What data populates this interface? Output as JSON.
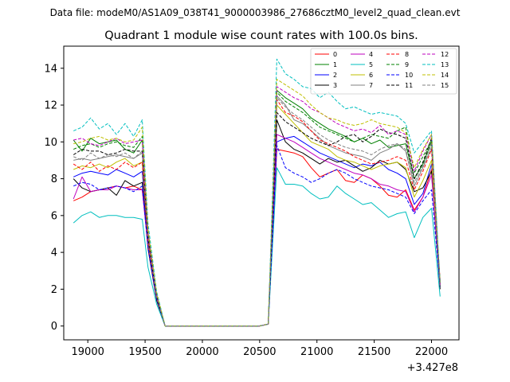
{
  "chart_data": {
    "type": "line",
    "suptitle": "Data file: modeM0/AS1A09_038T41_9000003986_27686cztM0_level2_quad_clean.evt",
    "title": "Quadrant 1 module wise count rates with 100.0s bins.",
    "xlabel": "",
    "ylabel": "",
    "x_offset_label": "+3.427e8",
    "xlim": [
      18790,
      22240
    ],
    "ylim": [
      -0.75,
      15.2
    ],
    "xticks": [
      19000,
      19500,
      20000,
      20500,
      21000,
      21500,
      22000
    ],
    "yticks": [
      0,
      2,
      4,
      6,
      8,
      10,
      12,
      14
    ],
    "grid": false,
    "legend_position": "upper-right",
    "x": [
      18875,
      18950,
      19025,
      19100,
      19175,
      19250,
      19325,
      19400,
      19475,
      19525,
      19600,
      19675,
      19750,
      19825,
      19900,
      19975,
      20050,
      20125,
      20200,
      20275,
      20350,
      20425,
      20500,
      20575,
      20650,
      20725,
      20800,
      20875,
      20950,
      21025,
      21100,
      21175,
      21250,
      21325,
      21400,
      21475,
      21550,
      21625,
      21700,
      21775,
      21850,
      21925,
      22000,
      22075
    ],
    "series": [
      {
        "name": "0",
        "color": "#ff0000",
        "dash": "solid",
        "values": [
          6.8,
          7.0,
          7.3,
          7.4,
          7.5,
          7.6,
          7.5,
          7.6,
          7.4,
          4.5,
          1.5,
          0,
          0,
          0,
          0,
          0,
          0,
          0,
          0,
          0,
          0,
          0,
          0,
          0.1,
          9.6,
          9.5,
          9.4,
          9.2,
          8.6,
          8.1,
          8.3,
          8.5,
          7.9,
          7.8,
          8.2,
          8.0,
          7.6,
          7.1,
          7.0,
          7.4,
          6.3,
          7.0,
          8.5,
          2.5
        ]
      },
      {
        "name": "1",
        "color": "#008000",
        "dash": "solid",
        "values": [
          10.1,
          9.5,
          10.2,
          9.9,
          10.0,
          10.1,
          9.6,
          9.4,
          10.1,
          5.0,
          1.7,
          0,
          0,
          0,
          0,
          0,
          0,
          0,
          0,
          0,
          0,
          0,
          0,
          0.1,
          12.8,
          12.4,
          12.1,
          11.8,
          11.3,
          11.0,
          10.7,
          10.5,
          10.3,
          10.0,
          10.2,
          9.9,
          10.1,
          9.7,
          9.8,
          9.9,
          8.0,
          8.8,
          10.0,
          2.2
        ]
      },
      {
        "name": "2",
        "color": "#0000ff",
        "dash": "solid",
        "values": [
          8.1,
          8.3,
          8.4,
          8.3,
          8.2,
          8.5,
          8.3,
          8.1,
          8.4,
          4.5,
          1.6,
          0,
          0,
          0,
          0,
          0,
          0,
          0,
          0,
          0,
          0,
          0,
          0,
          0.1,
          10.0,
          10.2,
          10.3,
          10.0,
          9.7,
          9.4,
          9.2,
          9.0,
          8.8,
          8.6,
          8.8,
          8.7,
          8.9,
          8.5,
          8.3,
          8.0,
          6.6,
          7.2,
          8.8,
          2.3
        ]
      },
      {
        "name": "3",
        "color": "#000000",
        "dash": "solid",
        "values": [
          8.0,
          7.5,
          7.3,
          7.4,
          7.5,
          7.1,
          7.9,
          7.6,
          7.8,
          4.2,
          1.4,
          0,
          0,
          0,
          0,
          0,
          0,
          0,
          0,
          0,
          0,
          0,
          0,
          0.1,
          11.2,
          10.0,
          9.6,
          9.4,
          9.1,
          8.8,
          9.1,
          8.9,
          9.0,
          8.7,
          8.4,
          8.6,
          9.0,
          8.8,
          8.9,
          8.5,
          7.3,
          7.5,
          8.4,
          2.0
        ]
      },
      {
        "name": "4",
        "color": "#bf00bf",
        "dash": "solid",
        "values": [
          6.9,
          8.1,
          7.3,
          7.4,
          7.4,
          7.6,
          7.5,
          7.4,
          7.4,
          4.3,
          1.5,
          0,
          0,
          0,
          0,
          0,
          0,
          0,
          0,
          0,
          0,
          0,
          0,
          0.1,
          10.4,
          10.2,
          10.0,
          9.7,
          9.4,
          9.1,
          8.9,
          8.7,
          8.5,
          8.3,
          8.2,
          8.0,
          7.7,
          7.6,
          7.4,
          7.3,
          6.2,
          7.0,
          8.2,
          2.4
        ]
      },
      {
        "name": "5",
        "color": "#00bfbf",
        "dash": "solid",
        "values": [
          5.6,
          6.0,
          6.2,
          5.9,
          6.0,
          6.0,
          5.9,
          5.9,
          5.8,
          3.2,
          1.2,
          0,
          0,
          0,
          0,
          0,
          0,
          0,
          0,
          0,
          0,
          0,
          0,
          0.1,
          8.6,
          7.7,
          7.7,
          7.6,
          7.2,
          6.9,
          7.0,
          7.6,
          7.2,
          6.9,
          6.6,
          6.7,
          6.3,
          5.9,
          6.1,
          6.2,
          4.8,
          5.9,
          6.4,
          1.6
        ]
      },
      {
        "name": "6",
        "color": "#bfbf00",
        "dash": "solid",
        "values": [
          8.5,
          8.7,
          8.6,
          8.8,
          8.6,
          8.9,
          9.1,
          8.7,
          8.9,
          4.6,
          1.6,
          0,
          0,
          0,
          0,
          0,
          0,
          0,
          0,
          0,
          0,
          0,
          0,
          0.1,
          12.0,
          11.5,
          11.0,
          10.5,
          10.0,
          9.8,
          9.6,
          9.2,
          9.0,
          8.9,
          8.7,
          8.5,
          8.7,
          8.8,
          8.9,
          8.6,
          7.0,
          7.9,
          9.0,
          2.4
        ]
      },
      {
        "name": "7",
        "color": "#808080",
        "dash": "solid",
        "values": [
          9.0,
          9.1,
          9.0,
          9.1,
          9.2,
          9.3,
          9.2,
          9.1,
          9.4,
          5.0,
          1.7,
          0,
          0,
          0,
          0,
          0,
          0,
          0,
          0,
          0,
          0,
          0,
          0,
          0.1,
          12.5,
          12.0,
          11.2,
          11.0,
          10.6,
          10.2,
          9.8,
          9.6,
          9.4,
          9.3,
          9.2,
          9.0,
          9.4,
          9.6,
          9.9,
          9.5,
          7.6,
          8.6,
          9.7,
          2.3
        ]
      },
      {
        "name": "8",
        "color": "#ff0000",
        "dash": "dashed",
        "values": [
          8.8,
          8.5,
          8.9,
          8.4,
          8.7,
          8.5,
          8.9,
          8.6,
          8.9,
          4.7,
          1.6,
          0,
          0,
          0,
          0,
          0,
          0,
          0,
          0,
          0,
          0,
          0,
          0,
          0.1,
          12.3,
          11.6,
          11.4,
          11.1,
          10.6,
          10.1,
          9.9,
          9.7,
          9.5,
          9.2,
          9.0,
          8.8,
          8.9,
          9.0,
          9.2,
          9.0,
          7.4,
          8.4,
          9.6,
          2.4
        ]
      },
      {
        "name": "9",
        "color": "#008000",
        "dash": "dashed",
        "values": [
          9.6,
          9.8,
          9.9,
          9.7,
          9.9,
          10.0,
          9.8,
          9.7,
          10.3,
          5.1,
          1.7,
          0,
          0,
          0,
          0,
          0,
          0,
          0,
          0,
          0,
          0,
          0,
          0,
          0.1,
          12.7,
          12.2,
          11.9,
          11.6,
          11.2,
          10.8,
          10.6,
          10.4,
          10.2,
          10.0,
          10.2,
          10.4,
          10.3,
          10.2,
          10.6,
          10.8,
          8.3,
          9.2,
          10.1,
          2.3
        ]
      },
      {
        "name": "10",
        "color": "#0000ff",
        "dash": "dashed",
        "values": [
          7.6,
          7.8,
          7.7,
          7.4,
          7.5,
          7.6,
          7.5,
          7.3,
          7.6,
          4.3,
          1.5,
          0,
          0,
          0,
          0,
          0,
          0,
          0,
          0,
          0,
          0,
          0,
          0,
          0.1,
          9.8,
          8.6,
          8.3,
          8.1,
          7.8,
          8.0,
          8.3,
          8.5,
          8.3,
          8.0,
          7.8,
          7.6,
          7.5,
          7.4,
          7.2,
          7.0,
          6.1,
          6.8,
          7.4,
          2.1
        ]
      },
      {
        "name": "11",
        "color": "#000000",
        "dash": "dashed",
        "values": [
          9.3,
          9.6,
          9.5,
          9.5,
          9.3,
          9.4,
          9.6,
          9.5,
          9.5,
          4.8,
          1.6,
          0,
          0,
          0,
          0,
          0,
          0,
          0,
          0,
          0,
          0,
          0,
          0,
          0.1,
          11.6,
          11.1,
          10.8,
          10.5,
          10.2,
          10.0,
          9.8,
          10.0,
          10.3,
          10.4,
          10.0,
          10.3,
          10.7,
          10.5,
          10.4,
          10.2,
          8.0,
          8.9,
          10.2,
          2.1
        ]
      },
      {
        "name": "12",
        "color": "#bf00bf",
        "dash": "dashed",
        "values": [
          10.1,
          10.2,
          9.9,
          9.8,
          10.0,
          10.2,
          9.9,
          10.0,
          10.1,
          5.1,
          1.7,
          0,
          0,
          0,
          0,
          0,
          0,
          0,
          0,
          0,
          0,
          0,
          0,
          0.1,
          13.0,
          12.7,
          12.4,
          12.2,
          11.8,
          11.6,
          11.3,
          11.0,
          10.8,
          10.6,
          10.7,
          10.5,
          10.9,
          10.4,
          10.6,
          10.4,
          8.4,
          9.5,
          10.4,
          2.2
        ]
      },
      {
        "name": "13",
        "color": "#00bfbf",
        "dash": "dashed",
        "values": [
          10.6,
          10.8,
          11.3,
          10.7,
          11.0,
          10.4,
          11.0,
          10.3,
          11.2,
          5.6,
          1.9,
          0,
          0,
          0,
          0,
          0,
          0,
          0,
          0,
          0,
          0,
          0,
          0,
          0.1,
          14.5,
          13.7,
          13.4,
          13.0,
          12.9,
          12.4,
          12.7,
          12.2,
          11.8,
          11.9,
          11.7,
          11.5,
          11.6,
          11.5,
          11.4,
          11.0,
          9.4,
          10.0,
          10.6,
          2.4
        ]
      },
      {
        "name": "14",
        "color": "#bfbf00",
        "dash": "dashed",
        "values": [
          9.9,
          10.0,
          10.2,
          10.3,
          10.1,
          10.2,
          10.0,
          10.1,
          10.8,
          5.3,
          1.8,
          0,
          0,
          0,
          0,
          0,
          0,
          0,
          0,
          0,
          0,
          0,
          0,
          0.1,
          13.4,
          13.1,
          12.8,
          12.5,
          12.0,
          11.6,
          11.3,
          11.2,
          11.0,
          10.9,
          11.0,
          11.2,
          11.0,
          10.9,
          10.8,
          10.5,
          8.6,
          9.6,
          10.4,
          2.3
        ]
      },
      {
        "name": "15",
        "color": "#808080",
        "dash": "dashed",
        "values": [
          9.2,
          9.0,
          9.4,
          9.1,
          9.3,
          9.2,
          9.4,
          9.1,
          9.5,
          4.9,
          1.6,
          0,
          0,
          0,
          0,
          0,
          0,
          0,
          0,
          0,
          0,
          0,
          0,
          0.1,
          12.4,
          11.9,
          11.5,
          11.2,
          10.8,
          10.4,
          10.1,
          9.9,
          9.7,
          9.6,
          9.5,
          9.3,
          9.6,
          9.8,
          9.9,
          9.6,
          7.8,
          8.7,
          9.9,
          2.2
        ]
      }
    ]
  }
}
